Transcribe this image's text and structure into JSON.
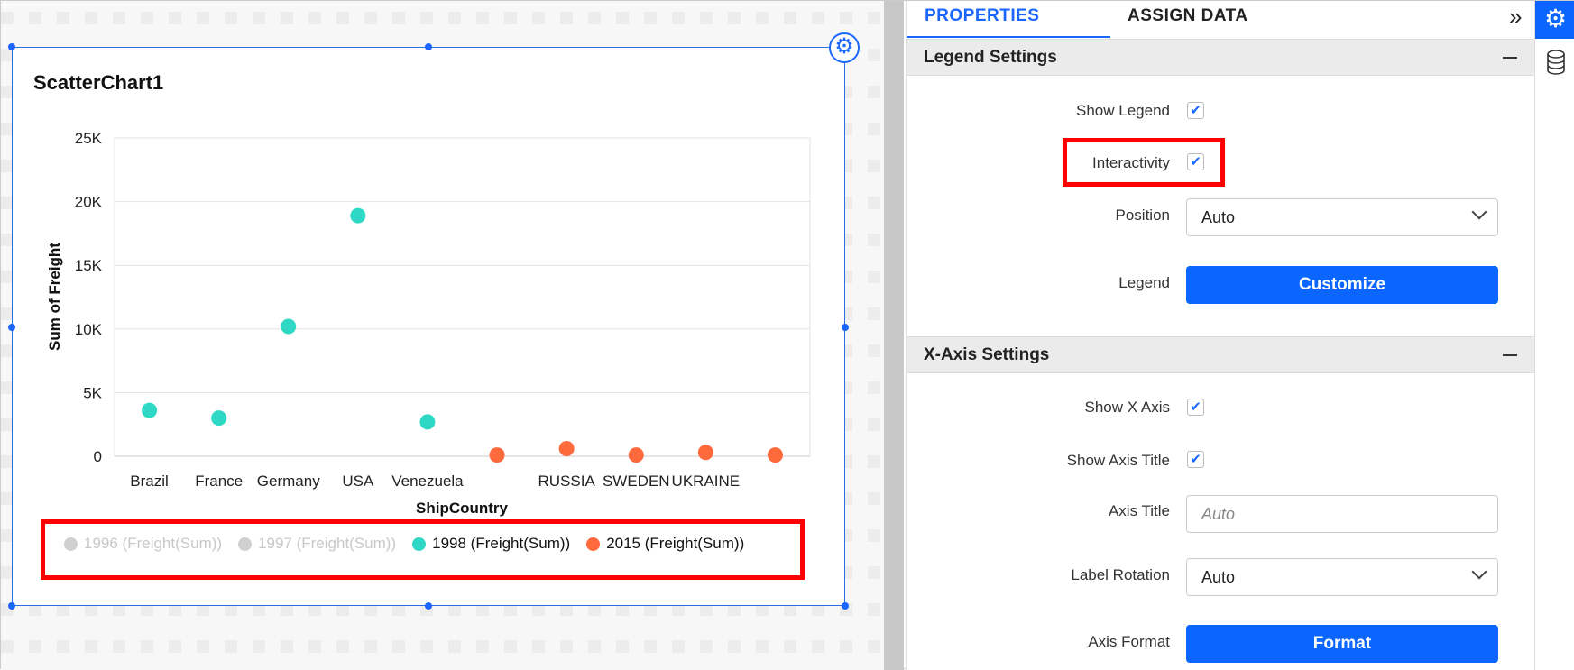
{
  "widget": {
    "title": "ScatterChart1"
  },
  "chart_data": {
    "type": "scatter",
    "xlabel": "ShipCountry",
    "ylabel": "Sum of Freight",
    "categories": [
      "Brazil",
      "France",
      "Germany",
      "USA",
      "Venezuela",
      "",
      "RUSSIA",
      "SWEDEN",
      "UKRAINE",
      ""
    ],
    "ylim": [
      0,
      25000
    ],
    "yticks": [
      "0",
      "5K",
      "10K",
      "15K",
      "20K",
      "25K"
    ],
    "grid": true,
    "legend_position": "bottom",
    "series": [
      {
        "name": "1996 (Freight(Sum))",
        "color": "#c8c8c8",
        "hidden": true,
        "values": []
      },
      {
        "name": "1997 (Freight(Sum))",
        "color": "#c8c8c8",
        "hidden": true,
        "values": []
      },
      {
        "name": "1998 (Freight(Sum))",
        "color": "#2fd8c4",
        "hidden": false,
        "values": [
          3600,
          3000,
          10200,
          18900,
          2700,
          null,
          null,
          null,
          null,
          null
        ]
      },
      {
        "name": "2015 (Freight(Sum))",
        "color": "#ff6a3d",
        "hidden": false,
        "values": [
          null,
          null,
          null,
          null,
          null,
          100,
          600,
          100,
          300,
          100
        ]
      }
    ]
  },
  "panel": {
    "tabs": [
      {
        "label": "PROPERTIES",
        "active": true
      },
      {
        "label": "ASSIGN DATA",
        "active": false
      }
    ],
    "collapse_icon": "»",
    "legend_settings": {
      "header": "Legend Settings",
      "show_legend_label": "Show Legend",
      "show_legend": true,
      "interactivity_label": "Interactivity",
      "interactivity": true,
      "position_label": "Position",
      "position_value": "Auto",
      "legend_label": "Legend",
      "customize_label": "Customize"
    },
    "xaxis_settings": {
      "header": "X-Axis Settings",
      "show_x_axis_label": "Show X Axis",
      "show_x_axis": true,
      "show_axis_title_label": "Show Axis Title",
      "show_axis_title": true,
      "axis_title_label": "Axis Title",
      "axis_title_placeholder": "Auto",
      "label_rotation_label": "Label Rotation",
      "label_rotation_value": "Auto",
      "axis_format_label": "Axis Format",
      "format_label": "Format"
    }
  },
  "colors": {
    "accent": "#0b66ff",
    "highlight": "#ff0000"
  }
}
